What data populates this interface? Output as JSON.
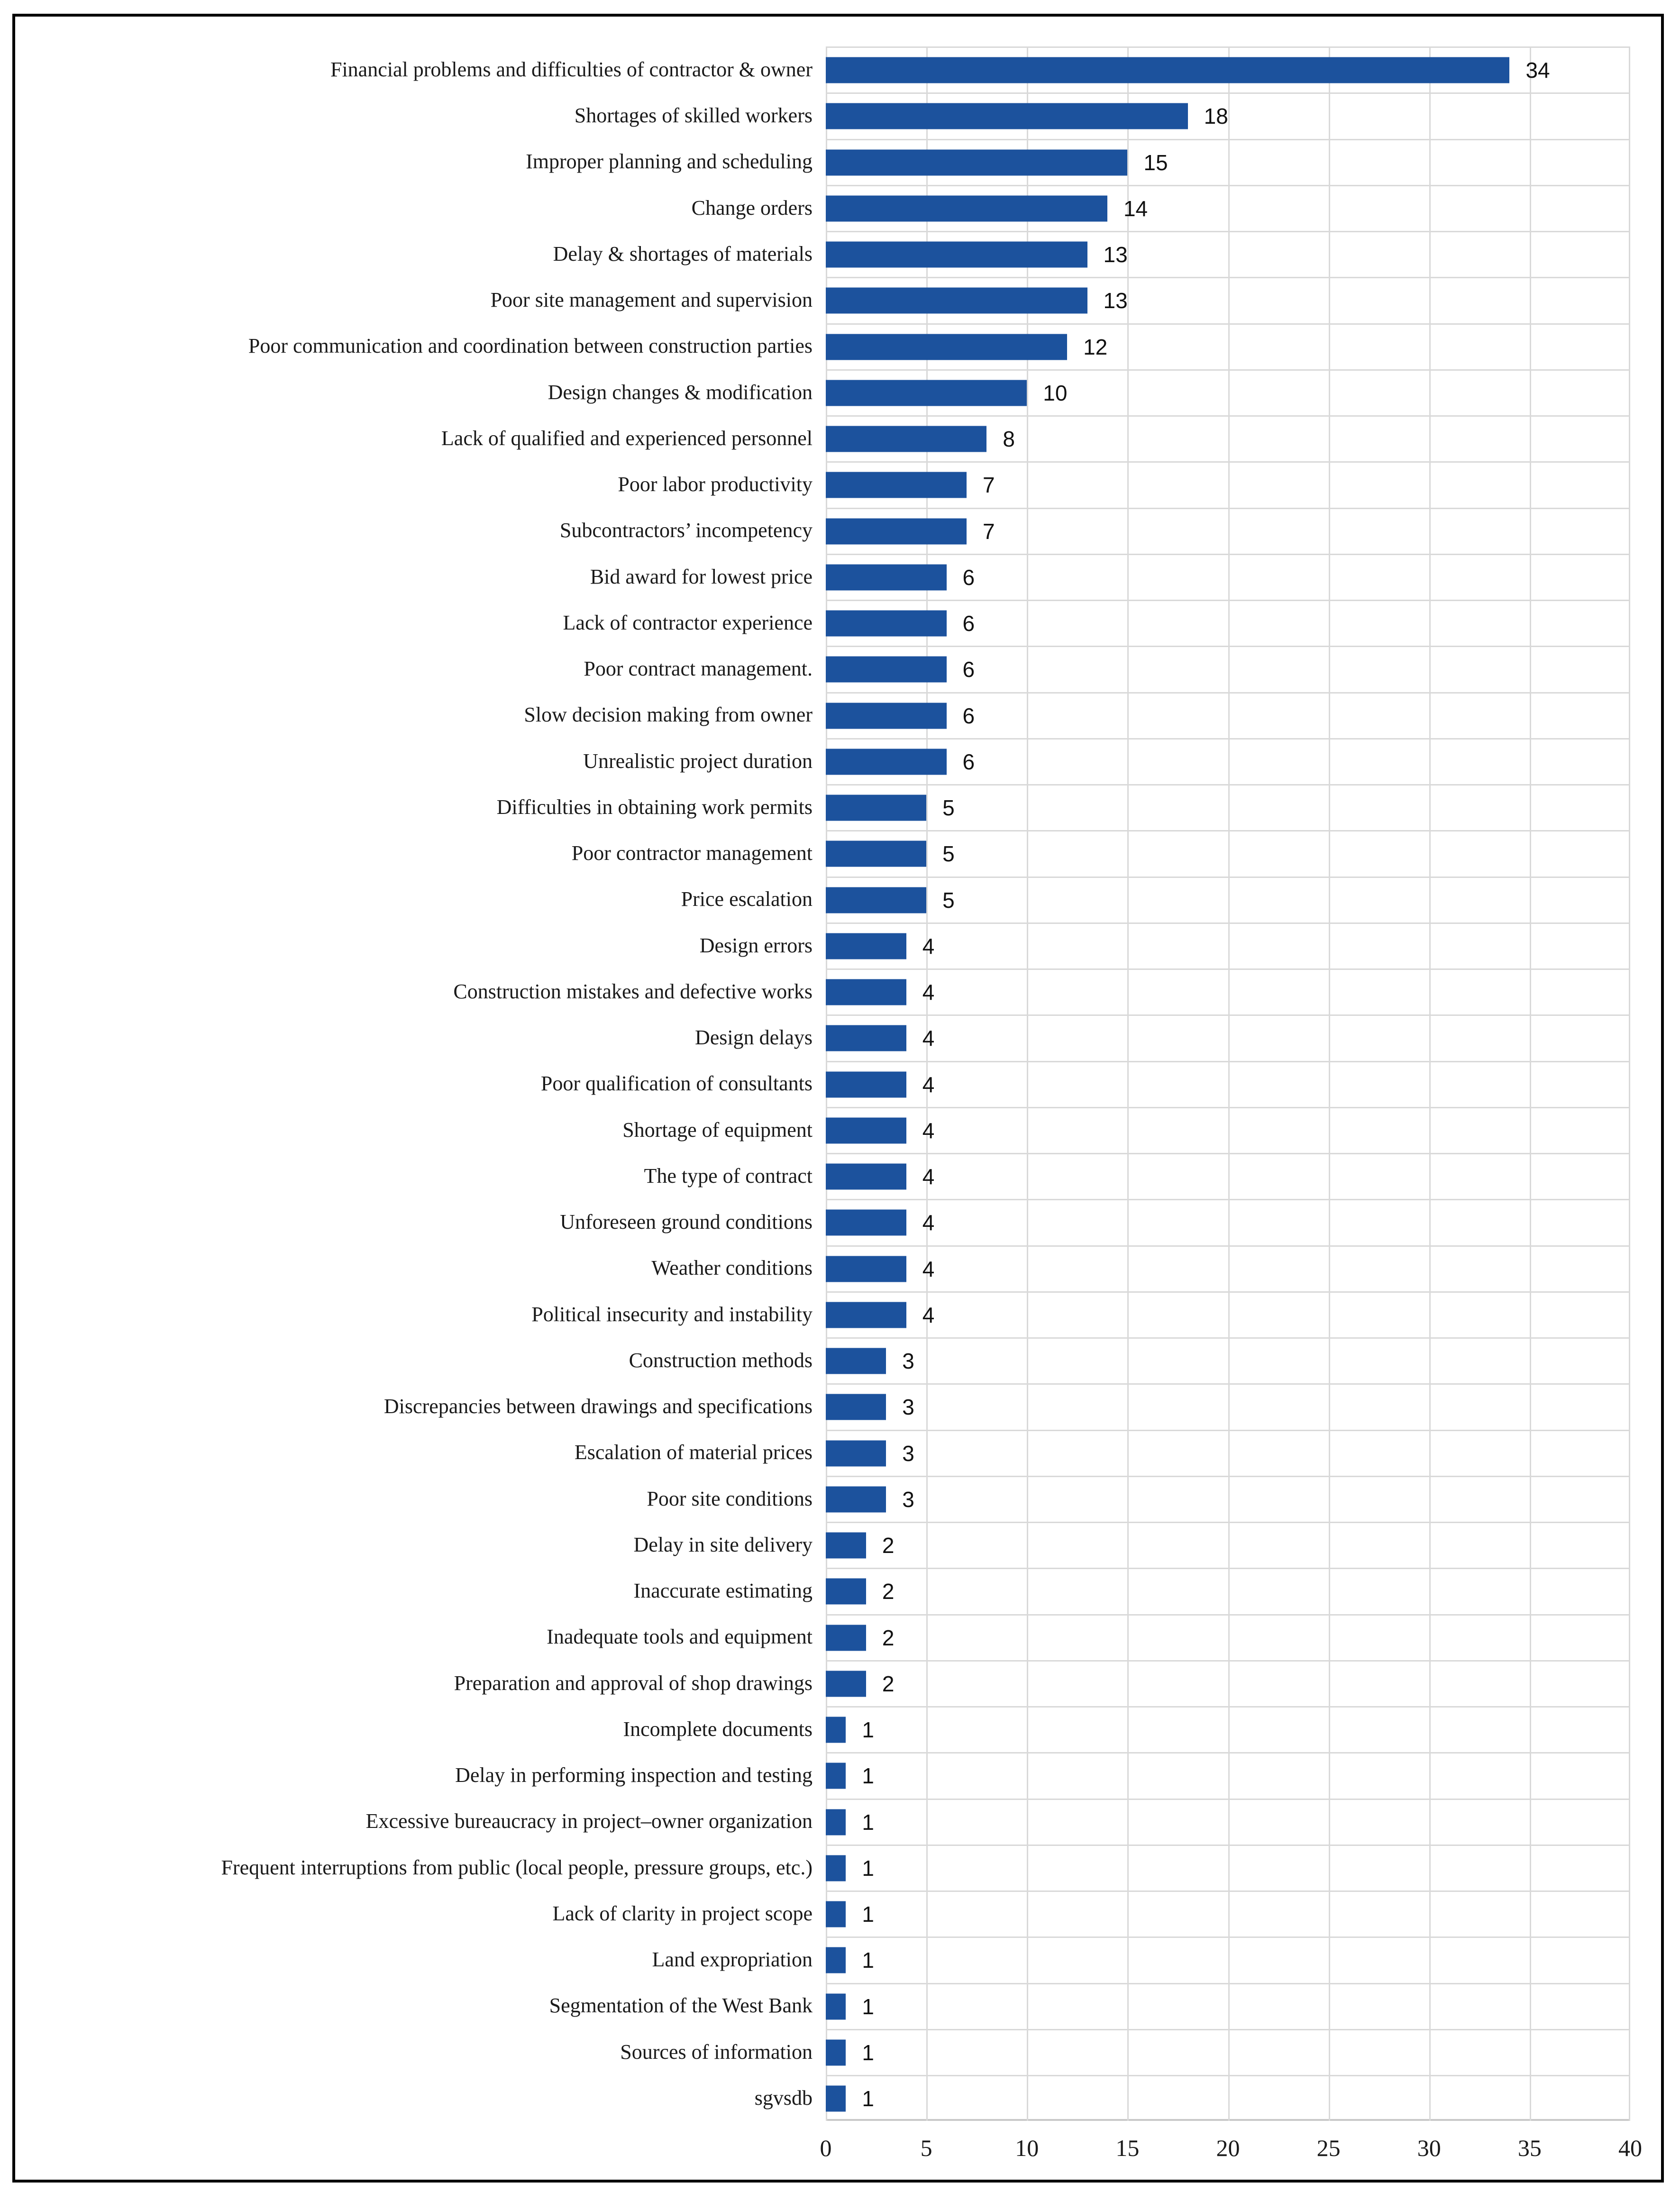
{
  "figure": {
    "background": "#ffffff",
    "border_color": "#000000"
  },
  "chart_data": {
    "type": "bar",
    "orientation": "horizontal",
    "title": "",
    "subtitle": "",
    "xlabel": "",
    "ylabel": "",
    "xlim": [
      0,
      40
    ],
    "x_ticks": [
      "0",
      "5",
      "10",
      "15",
      "20",
      "25",
      "30",
      "35",
      "40"
    ],
    "grid": true,
    "legend": false,
    "value_labels_shown": true,
    "bar_color": "#1C529D",
    "grid_color": "#D9D9D9",
    "axis_line_color": "#C9C9C9",
    "text_color": "#1a1a1a",
    "categories": [
      "Financial problems and difficulties of contractor & owner",
      "Shortages of skilled workers",
      "Improper planning and scheduling",
      "Change orders",
      "Delay & shortages of materials",
      "Poor site management and supervision",
      "Poor communication and coordination between construction parties",
      "Design changes & modification",
      "Lack of qualified and experienced personnel",
      "Poor labor productivity",
      "Subcontractors’ incompetency",
      "Bid award for lowest price",
      "Lack of contractor experience",
      "Poor contract management.",
      "Slow decision making from owner",
      "Unrealistic project duration",
      "Difficulties in obtaining work permits",
      "Poor contractor management",
      "Price escalation",
      "Design errors",
      "Construction mistakes and defective works",
      "Design delays",
      "Poor qualification of consultants",
      "Shortage of equipment",
      "The type of contract",
      "Unforeseen ground conditions",
      "Weather conditions",
      "Political insecurity and instability",
      "Construction methods",
      "Discrepancies between drawings and specifications",
      "Escalation of material prices",
      "Poor site conditions",
      "Delay in site delivery",
      "Inaccurate estimating",
      "Inadequate tools and equipment",
      "Preparation and approval of shop drawings",
      "Incomplete documents",
      "Delay in performing inspection and testing",
      "Excessive bureaucracy in project–owner organization",
      "Frequent interruptions from public (local people, pressure groups, etc.)",
      "Lack of clarity in project scope",
      "Land expropriation",
      "Segmentation of the West Bank",
      "Sources of information",
      "sgvsdb"
    ],
    "values": [
      34,
      18,
      15,
      14,
      13,
      13,
      12,
      10,
      8,
      7,
      7,
      6,
      6,
      6,
      6,
      6,
      5,
      5,
      5,
      4,
      4,
      4,
      4,
      4,
      4,
      4,
      4,
      4,
      3,
      3,
      3,
      3,
      2,
      2,
      2,
      2,
      1,
      1,
      1,
      1,
      1,
      1,
      1,
      1,
      1
    ]
  }
}
